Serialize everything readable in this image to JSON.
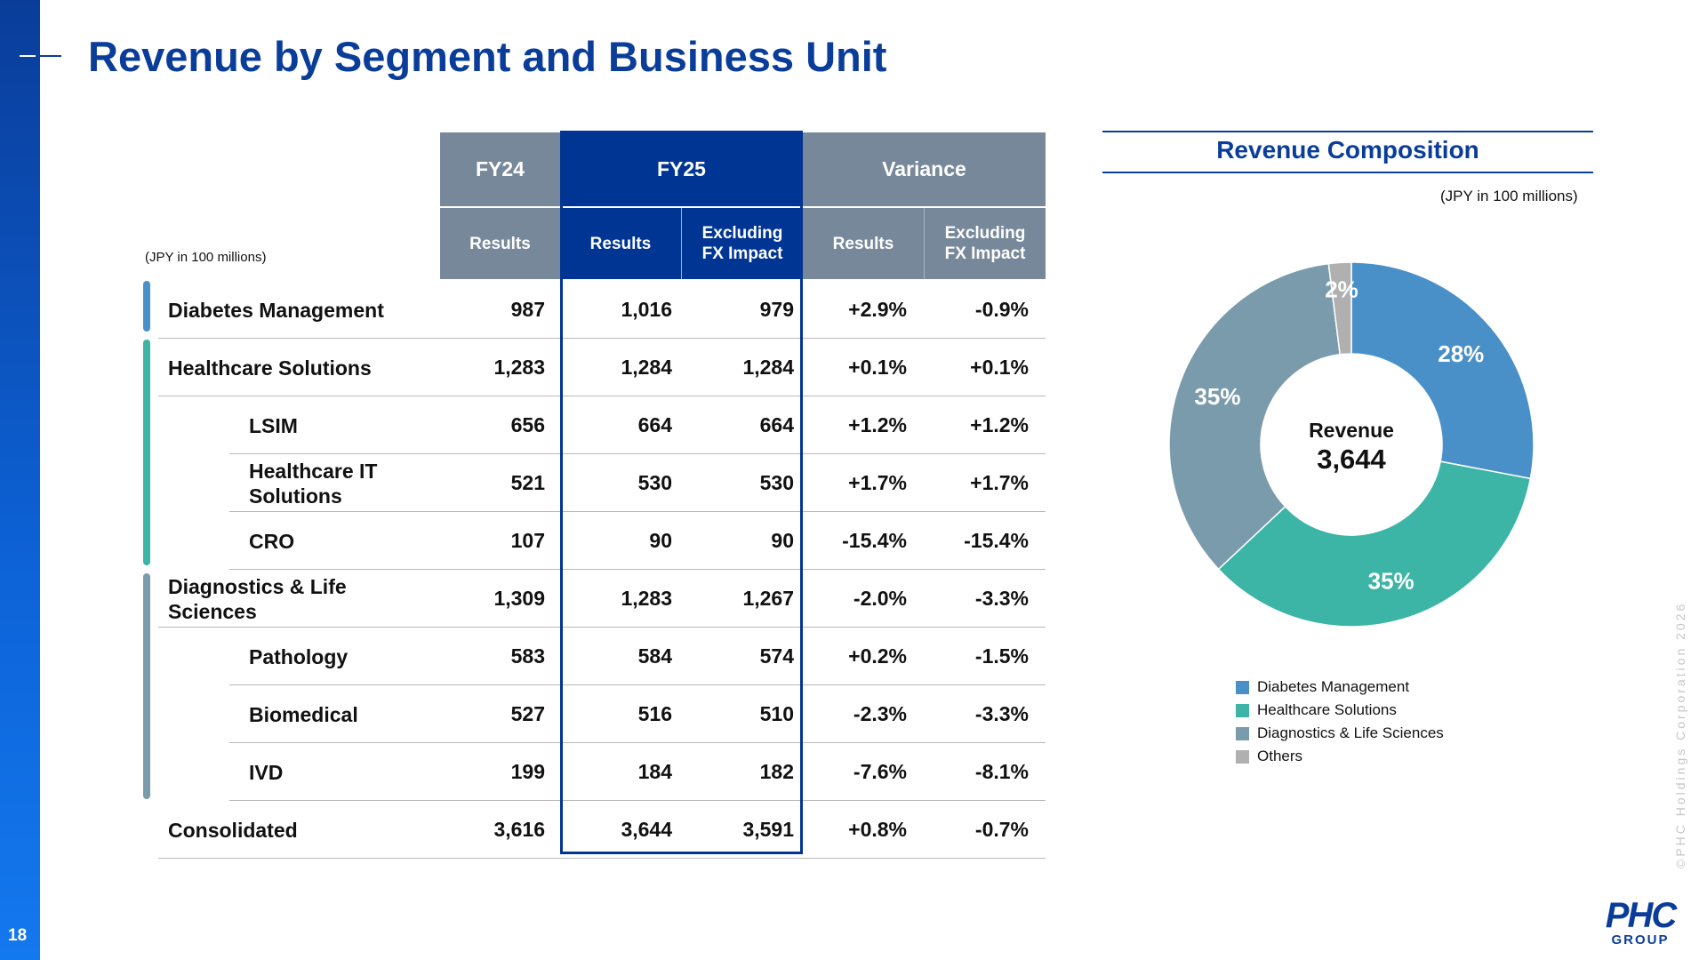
{
  "page": {
    "number": "18",
    "title": "Revenue by Segment and Business Unit"
  },
  "table": {
    "unit": "(JPY in 100 millions)",
    "header": {
      "fy24": "FY24",
      "fy25": "FY25",
      "variance": "Variance",
      "results": "Results",
      "excl_fx": "Excluding FX Impact"
    },
    "rows": [
      {
        "label": "Diabetes Management",
        "indent": false,
        "fy24": "987",
        "fy25": "1,016",
        "fy25_ex": "979",
        "var": "+2.9%",
        "var_ex": "-0.9%"
      },
      {
        "label": "Healthcare Solutions",
        "indent": false,
        "fy24": "1,283",
        "fy25": "1,284",
        "fy25_ex": "1,284",
        "var": "+0.1%",
        "var_ex": "+0.1%"
      },
      {
        "label": "LSIM",
        "indent": true,
        "fy24": "656",
        "fy25": "664",
        "fy25_ex": "664",
        "var": "+1.2%",
        "var_ex": "+1.2%"
      },
      {
        "label": "Healthcare IT Solutions",
        "indent": true,
        "fy24": "521",
        "fy25": "530",
        "fy25_ex": "530",
        "var": "+1.7%",
        "var_ex": "+1.7%"
      },
      {
        "label": "CRO",
        "indent": true,
        "fy24": "107",
        "fy25": "90",
        "fy25_ex": "90",
        "var": "-15.4%",
        "var_ex": "-15.4%"
      },
      {
        "label": "Diagnostics & Life Sciences",
        "indent": false,
        "fy24": "1,309",
        "fy25": "1,283",
        "fy25_ex": "1,267",
        "var": "-2.0%",
        "var_ex": "-3.3%"
      },
      {
        "label": "Pathology",
        "indent": true,
        "fy24": "583",
        "fy25": "584",
        "fy25_ex": "574",
        "var": "+0.2%",
        "var_ex": "-1.5%"
      },
      {
        "label": "Biomedical",
        "indent": true,
        "fy24": "527",
        "fy25": "516",
        "fy25_ex": "510",
        "var": "-2.3%",
        "var_ex": "-3.3%"
      },
      {
        "label": "IVD",
        "indent": true,
        "fy24": "199",
        "fy25": "184",
        "fy25_ex": "182",
        "var": "-7.6%",
        "var_ex": "-8.1%"
      },
      {
        "label": "Consolidated",
        "indent": false,
        "fy24": "3,616",
        "fy25": "3,644",
        "fy25_ex": "3,591",
        "var": "+0.8%",
        "var_ex": "-0.7%"
      }
    ],
    "segment_colors": {
      "diabetes": "#4a90c8",
      "healthcare": "#3cb4a6",
      "diagnostics": "#7a9bac"
    }
  },
  "composition": {
    "title": "Revenue Composition",
    "unit": "(JPY in 100 millions)",
    "center_label": "Revenue",
    "center_value": "3,644"
  },
  "chart_data": {
    "type": "pie",
    "title": "Revenue Composition",
    "labels": [
      "Diabetes Management",
      "Healthcare Solutions",
      "Diagnostics & Life Sciences",
      "Others"
    ],
    "values": [
      28,
      35,
      35,
      2
    ],
    "value_labels": [
      "28%",
      "35%",
      "35%",
      "2%"
    ],
    "colors": [
      "#4a90c8",
      "#3cb4a6",
      "#7a9bac",
      "#b0b0b0"
    ],
    "legend_position": "bottom"
  },
  "footer": {
    "copyright": "©PHC Holdings Corporation 2026",
    "logo_main": "PHC",
    "logo_sub": "GROUP"
  }
}
